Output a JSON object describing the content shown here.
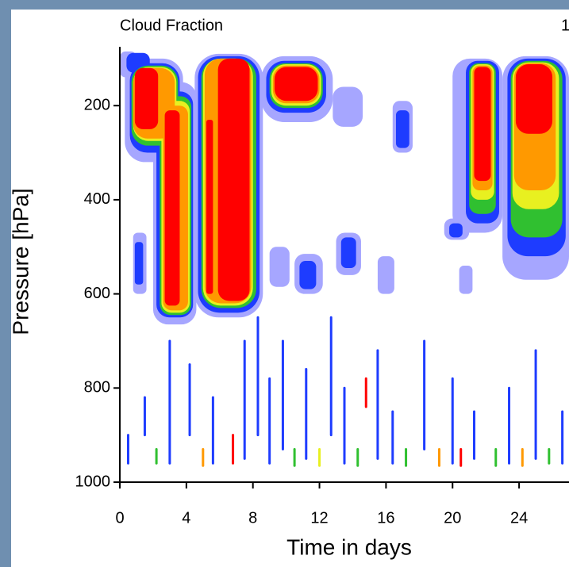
{
  "chart_data": {
    "type": "contour",
    "title": "Cloud Fraction",
    "right_title": "1",
    "x_label": "Time in days",
    "y_label": "Pressure [hPa]",
    "xlim": [
      0,
      27
    ],
    "ylim": [
      1000,
      75
    ],
    "xticks": [
      0,
      4,
      8,
      12,
      16,
      20,
      24
    ],
    "yticks": [
      200,
      400,
      600,
      800,
      1000
    ],
    "patches": [
      {
        "x": [
          0,
          1.0
        ],
        "y": [
          85,
          140
        ],
        "color": "#a6a6ff"
      },
      {
        "x": [
          0.3,
          3.8
        ],
        "y": [
          100,
          320
        ],
        "color": "#a6a6ff"
      },
      {
        "x": [
          2.0,
          4.6
        ],
        "y": [
          150,
          665
        ],
        "color": "#a6a6ff"
      },
      {
        "x": [
          4.5,
          8.6
        ],
        "y": [
          90,
          650
        ],
        "color": "#a6a6ff"
      },
      {
        "x": [
          8.5,
          12.8
        ],
        "y": [
          95,
          235
        ],
        "color": "#a6a6ff"
      },
      {
        "x": [
          12.8,
          14.6
        ],
        "y": [
          160,
          245
        ],
        "color": "#a6a6ff"
      },
      {
        "x": [
          16.4,
          17.6
        ],
        "y": [
          190,
          300
        ],
        "color": "#a6a6ff"
      },
      {
        "x": [
          20.0,
          23.0
        ],
        "y": [
          100,
          470
        ],
        "color": "#a6a6ff"
      },
      {
        "x": [
          23.0,
          27.0
        ],
        "y": [
          95,
          570
        ],
        "color": "#a6a6ff"
      },
      {
        "x": [
          0.8,
          1.6
        ],
        "y": [
          470,
          600
        ],
        "color": "#a6a6ff"
      },
      {
        "x": [
          9.0,
          10.2
        ],
        "y": [
          500,
          585
        ],
        "color": "#a6a6ff"
      },
      {
        "x": [
          10.5,
          12.2
        ],
        "y": [
          515,
          600
        ],
        "color": "#a6a6ff"
      },
      {
        "x": [
          13.0,
          14.5
        ],
        "y": [
          470,
          560
        ],
        "color": "#a6a6ff"
      },
      {
        "x": [
          15.5,
          16.5
        ],
        "y": [
          520,
          600
        ],
        "color": "#a6a6ff"
      },
      {
        "x": [
          19.5,
          21.0
        ],
        "y": [
          440,
          485
        ],
        "color": "#a6a6ff"
      },
      {
        "x": [
          20.4,
          21.2
        ],
        "y": [
          540,
          600
        ],
        "color": "#a6a6ff"
      },
      {
        "x": [
          0.4,
          1.8
        ],
        "y": [
          88,
          130
        ],
        "color": "#1e3cff"
      },
      {
        "x": [
          0.6,
          3.6
        ],
        "y": [
          110,
          300
        ],
        "color": "#1e3cff"
      },
      {
        "x": [
          2.2,
          4.4
        ],
        "y": [
          170,
          650
        ],
        "color": "#1e3cff"
      },
      {
        "x": [
          4.7,
          8.4
        ],
        "y": [
          95,
          640
        ],
        "color": "#1e3cff"
      },
      {
        "x": [
          8.8,
          12.4
        ],
        "y": [
          105,
          215
        ],
        "color": "#1e3cff"
      },
      {
        "x": [
          16.6,
          17.4
        ],
        "y": [
          210,
          290
        ],
        "color": "#1e3cff"
      },
      {
        "x": [
          20.8,
          22.8
        ],
        "y": [
          105,
          450
        ],
        "color": "#1e3cff"
      },
      {
        "x": [
          23.3,
          26.8
        ],
        "y": [
          100,
          520
        ],
        "color": "#1e3cff"
      },
      {
        "x": [
          0.9,
          1.4
        ],
        "y": [
          490,
          580
        ],
        "color": "#1e3cff"
      },
      {
        "x": [
          10.8,
          11.8
        ],
        "y": [
          530,
          590
        ],
        "color": "#1e3cff"
      },
      {
        "x": [
          13.3,
          14.2
        ],
        "y": [
          480,
          545
        ],
        "color": "#1e3cff"
      },
      {
        "x": [
          19.8,
          20.6
        ],
        "y": [
          450,
          480
        ],
        "color": "#1e3cff"
      },
      {
        "x": [
          0.7,
          3.5
        ],
        "y": [
          115,
          285
        ],
        "color": "#30c030"
      },
      {
        "x": [
          2.4,
          4.3
        ],
        "y": [
          180,
          645
        ],
        "color": "#30c030"
      },
      {
        "x": [
          4.9,
          8.2
        ],
        "y": [
          100,
          630
        ],
        "color": "#30c030"
      },
      {
        "x": [
          9.0,
          12.2
        ],
        "y": [
          110,
          205
        ],
        "color": "#30c030"
      },
      {
        "x": [
          21.0,
          22.6
        ],
        "y": [
          110,
          430
        ],
        "color": "#30c030"
      },
      {
        "x": [
          23.5,
          26.6
        ],
        "y": [
          105,
          480
        ],
        "color": "#30c030"
      },
      {
        "x": [
          0.8,
          3.4
        ],
        "y": [
          118,
          275
        ],
        "color": "#e8f020"
      },
      {
        "x": [
          2.5,
          4.2
        ],
        "y": [
          190,
          640
        ],
        "color": "#e8f020"
      },
      {
        "x": [
          5.0,
          8.0
        ],
        "y": [
          100,
          625
        ],
        "color": "#e8f020"
      },
      {
        "x": [
          9.1,
          12.1
        ],
        "y": [
          112,
          200
        ],
        "color": "#e8f020"
      },
      {
        "x": [
          21.1,
          22.5
        ],
        "y": [
          112,
          400
        ],
        "color": "#e8f020"
      },
      {
        "x": [
          23.6,
          26.4
        ],
        "y": [
          108,
          420
        ],
        "color": "#e8f020"
      },
      {
        "x": [
          0.8,
          3.3
        ],
        "y": [
          120,
          270
        ],
        "color": "#ff9900"
      },
      {
        "x": [
          2.6,
          4.1
        ],
        "y": [
          200,
          635
        ],
        "color": "#ff9900"
      },
      {
        "x": [
          5.1,
          7.9
        ],
        "y": [
          100,
          620
        ],
        "color": "#ff9900"
      },
      {
        "x": [
          9.2,
          12.0
        ],
        "y": [
          115,
          195
        ],
        "color": "#ff9900"
      },
      {
        "x": [
          21.2,
          22.4
        ],
        "y": [
          115,
          380
        ],
        "color": "#ff9900"
      },
      {
        "x": [
          23.7,
          26.2
        ],
        "y": [
          110,
          380
        ],
        "color": "#ff9900"
      },
      {
        "x": [
          0.9,
          2.3
        ],
        "y": [
          120,
          250
        ],
        "color": "#ff0000"
      },
      {
        "x": [
          2.7,
          3.6
        ],
        "y": [
          210,
          625
        ],
        "color": "#ff0000"
      },
      {
        "x": [
          5.2,
          5.6
        ],
        "y": [
          230,
          600
        ],
        "color": "#ff0000"
      },
      {
        "x": [
          5.9,
          7.8
        ],
        "y": [
          100,
          615
        ],
        "color": "#ff0000"
      },
      {
        "x": [
          9.3,
          11.9
        ],
        "y": [
          118,
          190
        ],
        "color": "#ff0000"
      },
      {
        "x": [
          21.3,
          22.3
        ],
        "y": [
          118,
          360
        ],
        "color": "#ff0000"
      },
      {
        "x": [
          23.8,
          26.0
        ],
        "y": [
          112,
          260
        ],
        "color": "#ff0000"
      }
    ],
    "streaks": [
      {
        "x": 0.5,
        "y": [
          900,
          960
        ],
        "color": "#1e3cff"
      },
      {
        "x": 1.5,
        "y": [
          820,
          900
        ],
        "color": "#1e3cff"
      },
      {
        "x": 2.2,
        "y": [
          930,
          960
        ],
        "color": "#30c030"
      },
      {
        "x": 3.0,
        "y": [
          700,
          960
        ],
        "color": "#1e3cff"
      },
      {
        "x": 4.2,
        "y": [
          750,
          900
        ],
        "color": "#1e3cff"
      },
      {
        "x": 5.0,
        "y": [
          930,
          965
        ],
        "color": "#ff9900"
      },
      {
        "x": 5.6,
        "y": [
          820,
          960
        ],
        "color": "#1e3cff"
      },
      {
        "x": 6.8,
        "y": [
          900,
          960
        ],
        "color": "#ff0000"
      },
      {
        "x": 7.5,
        "y": [
          700,
          950
        ],
        "color": "#1e3cff"
      },
      {
        "x": 8.3,
        "y": [
          650,
          900
        ],
        "color": "#1e3cff"
      },
      {
        "x": 9.0,
        "y": [
          780,
          960
        ],
        "color": "#1e3cff"
      },
      {
        "x": 9.8,
        "y": [
          700,
          930
        ],
        "color": "#1e3cff"
      },
      {
        "x": 10.5,
        "y": [
          930,
          965
        ],
        "color": "#30c030"
      },
      {
        "x": 11.2,
        "y": [
          760,
          950
        ],
        "color": "#1e3cff"
      },
      {
        "x": 12.0,
        "y": [
          930,
          965
        ],
        "color": "#e8f020"
      },
      {
        "x": 12.7,
        "y": [
          650,
          900
        ],
        "color": "#1e3cff"
      },
      {
        "x": 13.5,
        "y": [
          800,
          960
        ],
        "color": "#1e3cff"
      },
      {
        "x": 14.3,
        "y": [
          930,
          965
        ],
        "color": "#30c030"
      },
      {
        "x": 14.8,
        "y": [
          780,
          840
        ],
        "color": "#ff0000"
      },
      {
        "x": 15.5,
        "y": [
          720,
          950
        ],
        "color": "#1e3cff"
      },
      {
        "x": 16.4,
        "y": [
          850,
          960
        ],
        "color": "#1e3cff"
      },
      {
        "x": 17.2,
        "y": [
          930,
          965
        ],
        "color": "#30c030"
      },
      {
        "x": 18.3,
        "y": [
          700,
          930
        ],
        "color": "#1e3cff"
      },
      {
        "x": 19.2,
        "y": [
          930,
          965
        ],
        "color": "#ff9900"
      },
      {
        "x": 20.0,
        "y": [
          780,
          960
        ],
        "color": "#1e3cff"
      },
      {
        "x": 20.5,
        "y": [
          930,
          965
        ],
        "color": "#ff0000"
      },
      {
        "x": 21.3,
        "y": [
          850,
          950
        ],
        "color": "#1e3cff"
      },
      {
        "x": 22.6,
        "y": [
          930,
          965
        ],
        "color": "#30c030"
      },
      {
        "x": 23.4,
        "y": [
          800,
          960
        ],
        "color": "#1e3cff"
      },
      {
        "x": 24.2,
        "y": [
          930,
          965
        ],
        "color": "#ff9900"
      },
      {
        "x": 25.0,
        "y": [
          720,
          950
        ],
        "color": "#1e3cff"
      },
      {
        "x": 25.8,
        "y": [
          930,
          960
        ],
        "color": "#30c030"
      },
      {
        "x": 26.6,
        "y": [
          850,
          960
        ],
        "color": "#1e3cff"
      }
    ]
  }
}
